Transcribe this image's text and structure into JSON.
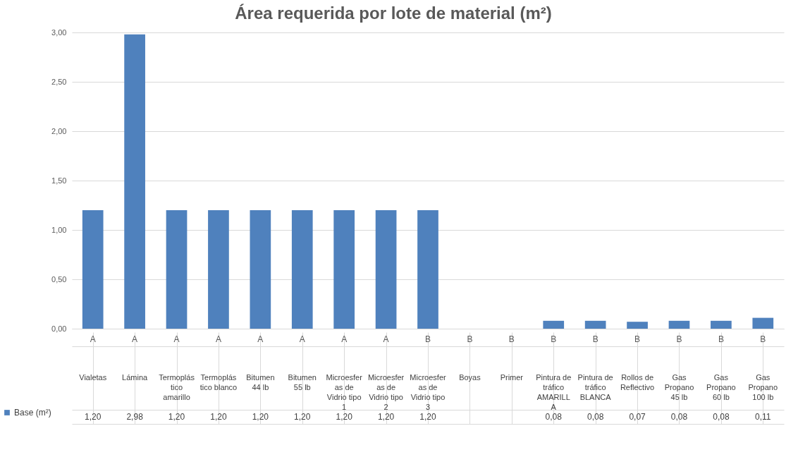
{
  "chart_data": {
    "type": "bar",
    "title": "Área requerida por lote de material (m²)",
    "categories": [
      "Vialetas",
      "Lámina",
      "Termoplástico amarillo",
      "Termoplástico blanco",
      "Bitumen 44 lb",
      "Bitumen 55 lb",
      "Microesferas de Vidrio tipo 1",
      "Microesferas de Vidrio tipo 2",
      "Microesferas de Vidrio tipo 3",
      "Boyas",
      "Primer",
      "Pintura de tráfico AMARILLA",
      "Pintura de tráfico BLANCA",
      "Rollos de Reflectivo",
      "Gas Propano 45 lb",
      "Gas Propano 60 lb",
      "Gas Propano 100 lb"
    ],
    "series": [
      {
        "name": "Base (m²)",
        "color": "#4f81bd",
        "values": [
          1.2,
          2.98,
          1.2,
          1.2,
          1.2,
          1.2,
          1.2,
          1.2,
          1.2,
          null,
          null,
          0.08,
          0.08,
          0.07,
          0.08,
          0.08,
          0.11
        ],
        "value_labels": [
          "1,20",
          "2,98",
          "1,20",
          "1,20",
          "1,20",
          "1,20",
          "1,20",
          "1,20",
          "1,20",
          null,
          null,
          "0,08",
          "0,08",
          "0,07",
          "0,08",
          "0,08",
          "0,11"
        ]
      }
    ],
    "ylim": [
      0,
      3
    ],
    "yticks": [
      {
        "value": 0,
        "label": "0,00"
      },
      {
        "value": 0.5,
        "label": "0,50"
      },
      {
        "value": 1,
        "label": "1,00"
      },
      {
        "value": 1.5,
        "label": "1,50"
      },
      {
        "value": 2,
        "label": "2,00"
      },
      {
        "value": 2.5,
        "label": "2,50"
      },
      {
        "value": 3,
        "label": "3,00"
      }
    ],
    "grid": "y",
    "legend": "bottom left",
    "annotations": [
      "A",
      "A",
      "A",
      "A",
      "A",
      "A",
      "A",
      "A",
      "B",
      "B",
      "B",
      "B",
      "B",
      "B",
      "B",
      "B",
      "B"
    ]
  }
}
